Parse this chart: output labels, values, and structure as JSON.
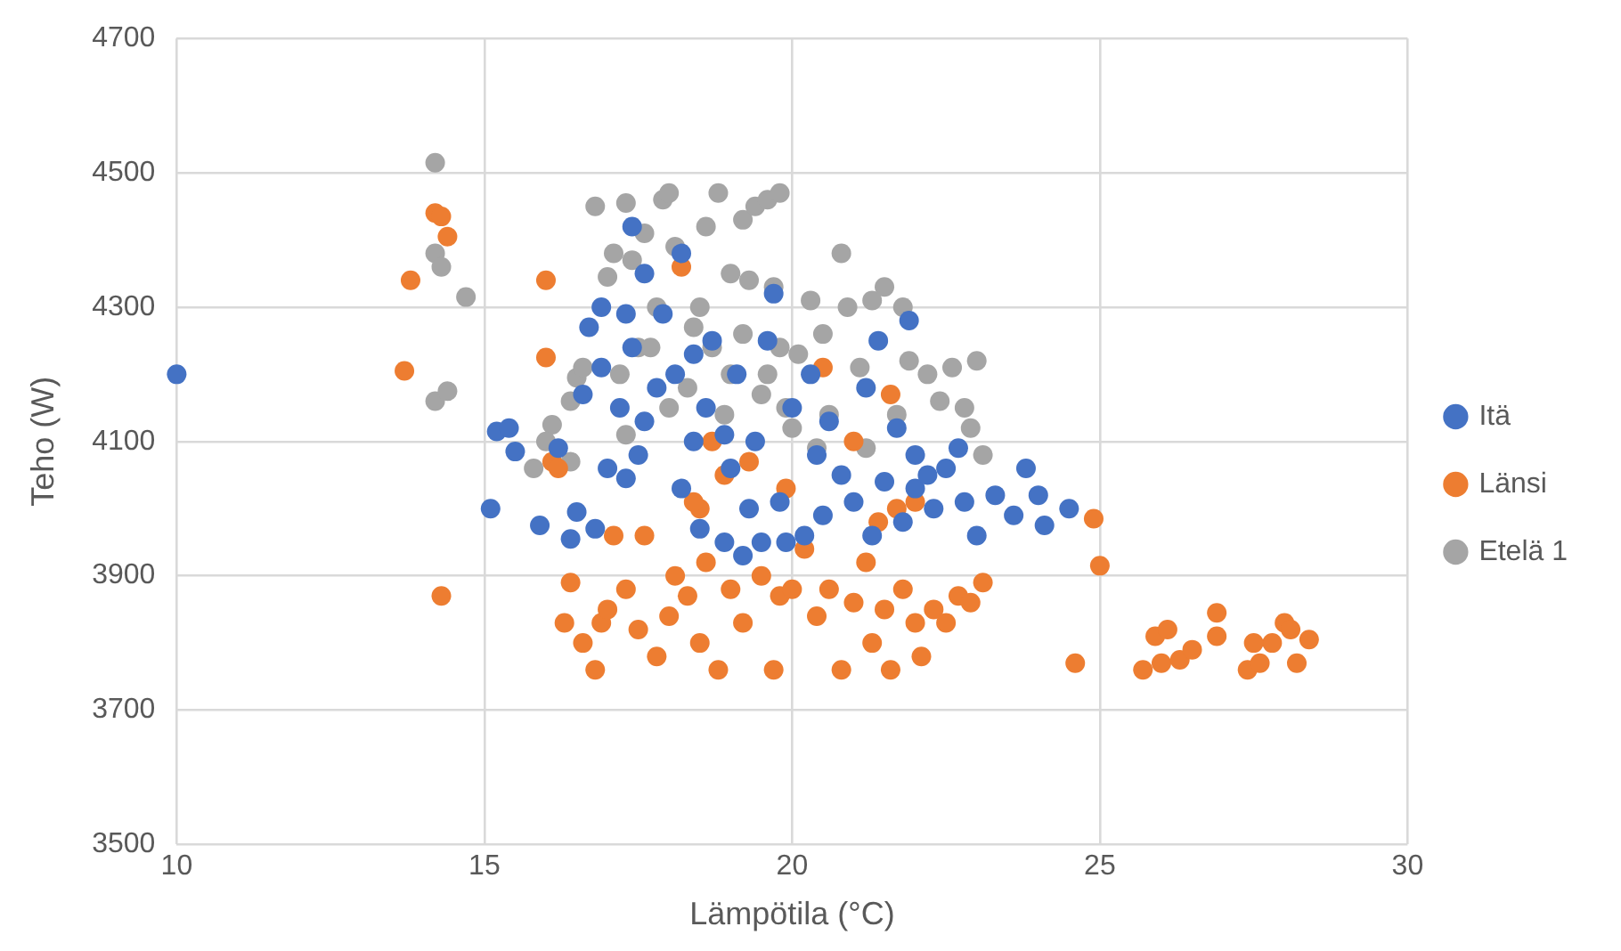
{
  "chart_data": {
    "type": "scatter",
    "xlabel": "Lämpötila (°C)",
    "ylabel": "Teho (W)",
    "xlim": [
      10,
      30
    ],
    "xticks": [
      10,
      15,
      20,
      25,
      30
    ],
    "ylim": [
      3500,
      4700
    ],
    "yticks": [
      3500,
      3700,
      3900,
      4100,
      4300,
      4500,
      4700
    ],
    "grid": true,
    "legend": "right",
    "marker": "circle",
    "series": [
      {
        "name": "Itä",
        "color": "#4472c4",
        "x": [
          10,
          15.1,
          15.2,
          15.4,
          15.5,
          15.9,
          16.2,
          16.4,
          16.5,
          16.8,
          17,
          17.3,
          17.4,
          17.3,
          16.9,
          16.7,
          16.6,
          17.4,
          17.6,
          22.5,
          22.8,
          23,
          23.3,
          23.6,
          23.8,
          24,
          24.1,
          24.5,
          22,
          22.3,
          21.8,
          21.3,
          20.5,
          20.2,
          19.5,
          19.2,
          18.9,
          18.5,
          18.2,
          18.4,
          19,
          19.3,
          19.8,
          19.9,
          20.8,
          21,
          21.5,
          22,
          22.2,
          22.7,
          20.6,
          21.2,
          21.9,
          21.4,
          20.3,
          19.7,
          19.6,
          19.1,
          18.7,
          18.4,
          18.1,
          17.8,
          17.6,
          17.2,
          16.9,
          17.9,
          18.2,
          18.6,
          18.9,
          19.4,
          20,
          20.4,
          21.7,
          17.5
        ],
        "values": [
          4200,
          4000,
          4115,
          4120,
          4085,
          3975,
          4090,
          3955,
          3995,
          3970,
          4060,
          4045,
          4420,
          4290,
          4300,
          4270,
          4170,
          4240,
          4350,
          4060,
          4010,
          3960,
          4020,
          3990,
          4060,
          4020,
          3975,
          4000,
          4030,
          4000,
          3980,
          3960,
          3990,
          3960,
          3950,
          3930,
          3950,
          3970,
          4030,
          4100,
          4060,
          4000,
          4010,
          3950,
          4050,
          4010,
          4040,
          4080,
          4050,
          4090,
          4130,
          4180,
          4280,
          4250,
          4200,
          4320,
          4250,
          4200,
          4250,
          4230,
          4200,
          4180,
          4130,
          4150,
          4210,
          4290,
          4380,
          4150,
          4110,
          4100,
          4150,
          4080,
          4120,
          4080
        ]
      },
      {
        "name": "Länsi",
        "color": "#ed7d31",
        "x": [
          13.7,
          13.8,
          14.2,
          14.3,
          14.4,
          14.3,
          16,
          16,
          16.1,
          16.2,
          16.3,
          16.4,
          16.6,
          16.8,
          16.9,
          17.1,
          17,
          17.3,
          17.5,
          17.6,
          17.8,
          18,
          18.1,
          18.3,
          18.5,
          18.6,
          18.8,
          18.9,
          19,
          19.2,
          19.5,
          19.7,
          19.8,
          20,
          20.2,
          20.4,
          20.6,
          20.8,
          21,
          21.2,
          21.3,
          21.5,
          21.6,
          21.8,
          22,
          22.1,
          22.3,
          22.5,
          22.7,
          22.9,
          23.1,
          21.4,
          21.7,
          19.3,
          18.7,
          18.5,
          19.9,
          21.6,
          21,
          22,
          24.6,
          24.9,
          25,
          25.7,
          25.9,
          26,
          26.1,
          26.3,
          26.5,
          26.9,
          26.9,
          27.4,
          27.6,
          27.8,
          28,
          28.1,
          28.2,
          28.4,
          27.5,
          18.2,
          18.4,
          20.5
        ],
        "values": [
          4205,
          4340,
          4440,
          4435,
          4405,
          3870,
          4340,
          4225,
          4070,
          4060,
          3830,
          3890,
          3800,
          3760,
          3830,
          3960,
          3850,
          3880,
          3820,
          3960,
          3780,
          3840,
          3900,
          3870,
          3800,
          3920,
          3760,
          4050,
          3880,
          3830,
          3900,
          3760,
          3870,
          3880,
          3940,
          3840,
          3880,
          3760,
          3860,
          3920,
          3800,
          3850,
          3760,
          3880,
          3830,
          3780,
          3850,
          3830,
          3870,
          3860,
          3890,
          3980,
          4000,
          4070,
          4100,
          4000,
          4030,
          4170,
          4100,
          4010,
          3770,
          3985,
          3915,
          3760,
          3810,
          3770,
          3820,
          3775,
          3790,
          3845,
          3810,
          3760,
          3770,
          3800,
          3830,
          3820,
          3770,
          3805,
          3800,
          4360,
          4010,
          4210
        ]
      },
      {
        "name": "Etelä 1",
        "color": "#a5a5a5",
        "x": [
          14.2,
          14.2,
          14.3,
          14.7,
          14.2,
          14.4,
          16.1,
          16.4,
          16.5,
          16.6,
          16.8,
          17,
          17.1,
          17.3,
          17.4,
          17.6,
          17.9,
          18,
          18.1,
          17.8,
          17.5,
          17.2,
          17.3,
          16.4,
          15.8,
          16,
          18.5,
          18.6,
          18.8,
          19.2,
          19.4,
          19.6,
          19.8,
          19,
          19.3,
          19.7,
          18.7,
          19,
          19.5,
          19.9,
          20.1,
          20.3,
          20.5,
          20.8,
          20.9,
          21.1,
          21.3,
          21.5,
          21.8,
          21.9,
          22.2,
          22.6,
          22.8,
          23,
          23.1,
          22.9,
          22.4,
          21.7,
          21.2,
          20.6,
          20.4,
          20,
          19.6,
          18.9,
          18.3,
          18,
          17.7,
          18.4,
          19.2,
          19.8
        ],
        "values": [
          4515,
          4380,
          4360,
          4315,
          4160,
          4175,
          4125,
          4160,
          4195,
          4210,
          4450,
          4345,
          4380,
          4455,
          4370,
          4410,
          4460,
          4470,
          4390,
          4300,
          4240,
          4200,
          4110,
          4070,
          4060,
          4100,
          4300,
          4420,
          4470,
          4430,
          4450,
          4460,
          4470,
          4350,
          4340,
          4330,
          4240,
          4200,
          4170,
          4150,
          4230,
          4310,
          4260,
          4380,
          4300,
          4210,
          4310,
          4330,
          4300,
          4220,
          4200,
          4210,
          4150,
          4220,
          4080,
          4120,
          4160,
          4140,
          4090,
          4140,
          4090,
          4120,
          4200,
          4140,
          4180,
          4150,
          4240,
          4270,
          4260,
          4240
        ]
      }
    ]
  }
}
